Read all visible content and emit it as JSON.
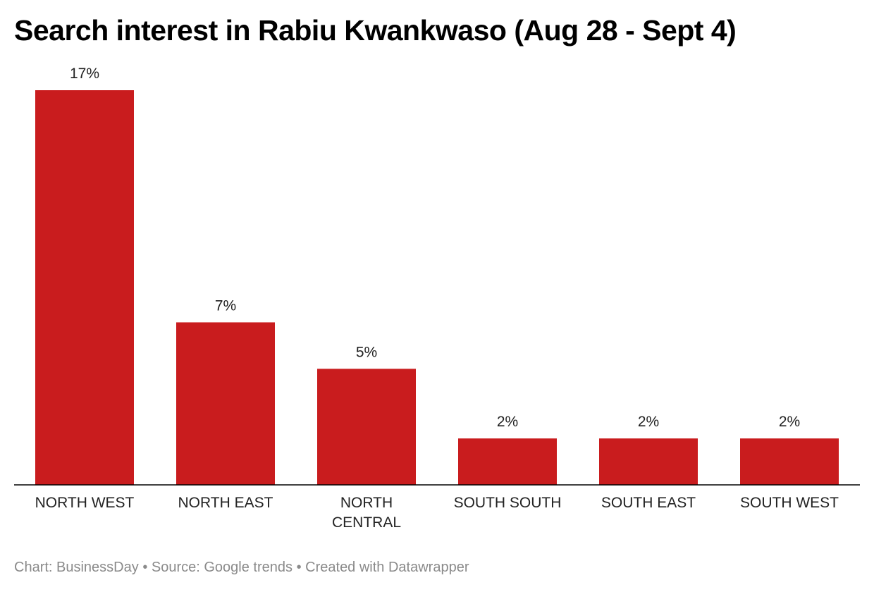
{
  "chart_data": {
    "type": "bar",
    "title": "Search interest in Rabiu Kwankwaso (Aug 28 - Sept 4)",
    "categories": [
      [
        "NORTH WEST"
      ],
      [
        "NORTH EAST"
      ],
      [
        "NORTH",
        "CENTRAL"
      ],
      [
        "SOUTH SOUTH"
      ],
      [
        "SOUTH EAST"
      ],
      [
        "SOUTH WEST"
      ]
    ],
    "values": [
      17,
      7,
      5,
      2,
      2,
      2
    ],
    "value_labels": [
      "17%",
      "7%",
      "5%",
      "2%",
      "2%",
      "2%"
    ],
    "unit": "%",
    "ylim": [
      0,
      17
    ],
    "grid": false,
    "bar_color": "#c91c1e",
    "axis_color": "#000000"
  },
  "footer": {
    "chart_credit": "Chart: BusinessDay",
    "separator": "•",
    "source": "Source: Google trends",
    "created_with": "Created with Datawrapper"
  }
}
